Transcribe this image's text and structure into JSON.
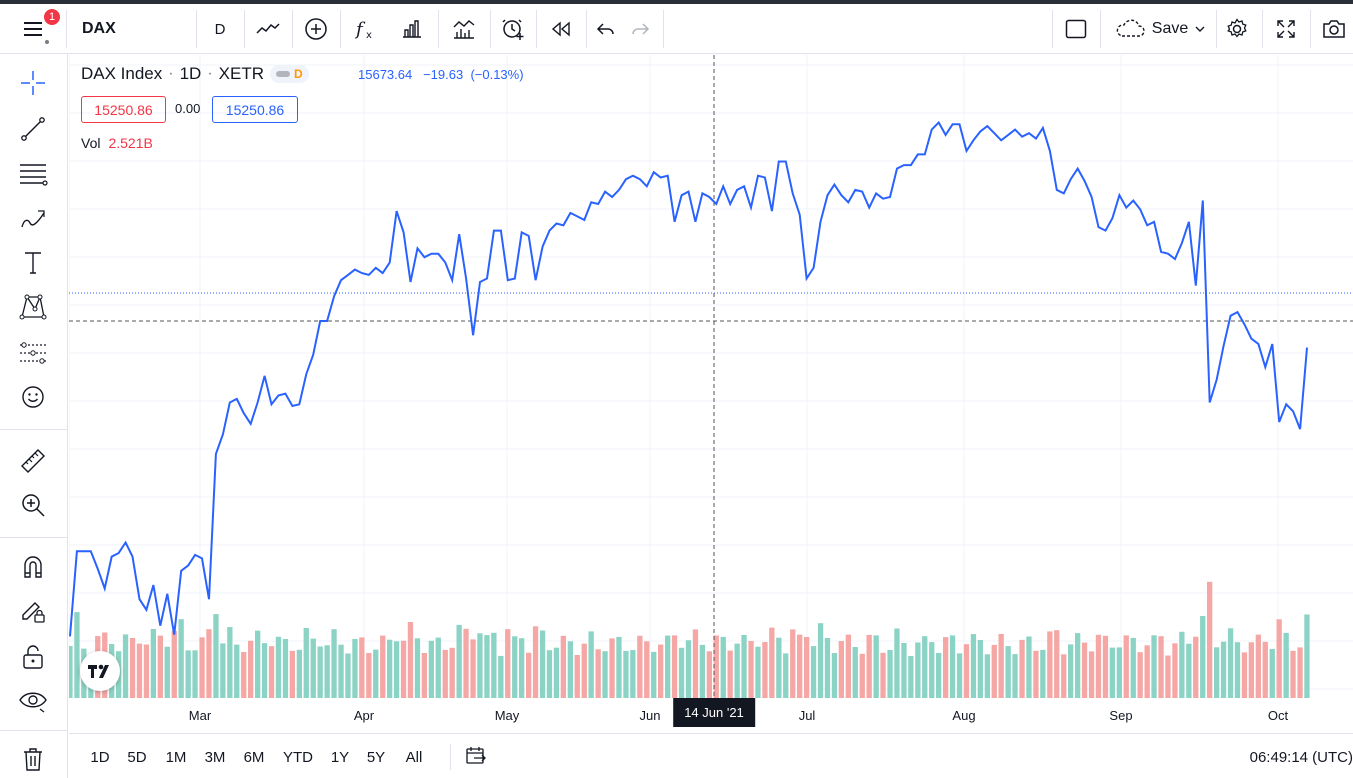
{
  "toolbar": {
    "symbol": "DAX",
    "interval": "D",
    "save_label": "Save",
    "notification_count": "1"
  },
  "legend": {
    "title": "DAX Index",
    "interval": "1D",
    "exchange": "XETR",
    "dtoggle": "D",
    "last_price": "15673.64",
    "change": "−19.63",
    "change_pct": "(−0.13%)",
    "bid": "15250.86",
    "spread": "0.00",
    "ask": "15250.86",
    "vol_label": "Vol",
    "vol_value": "2.521B"
  },
  "xaxis": {
    "months": [
      "Mar",
      "Apr",
      "May",
      "Jun",
      "Jul",
      "Aug",
      "Sep",
      "Oct"
    ],
    "crosshair_label": "14 Jun '21"
  },
  "ranges": [
    "1D",
    "5D",
    "1M",
    "3M",
    "6M",
    "YTD",
    "1Y",
    "5Y",
    "All"
  ],
  "clock": "06:49:14 (UTC)",
  "colors": {
    "line": "#2962ff",
    "vol_up": "#8bd3c4",
    "vol_down": "#f4a7a5",
    "grid": "#f0f3fa"
  },
  "chart_data": {
    "type": "line",
    "series": [
      {
        "values": [
          14040,
          14520,
          14520,
          14520,
          14420,
          14310,
          14490,
          14510,
          14570,
          14490,
          14250,
          14190,
          14330,
          14100,
          14280,
          14050,
          14410,
          14440,
          14500,
          14480,
          14250,
          15070,
          15180,
          15360,
          15380,
          15300,
          15240,
          15360,
          15510,
          15350,
          15400,
          15410,
          15340,
          15350,
          15520,
          15630,
          15820,
          15820,
          15960,
          16050,
          16080,
          16110,
          16090,
          16080,
          16120,
          16090,
          16150,
          16440,
          16320,
          16040,
          16230,
          16180,
          16200,
          16200,
          16150,
          16050,
          16310,
          16060,
          15740,
          16040,
          16060,
          16330,
          16330,
          16050,
          16060,
          16320,
          16300,
          16050,
          16240,
          16330,
          16370,
          16360,
          16430,
          16410,
          16390,
          16490,
          16480,
          16550,
          16520,
          16560,
          16620,
          16640,
          16620,
          16580,
          16660,
          16630,
          16640,
          16380,
          16530,
          16550,
          16380,
          16540,
          16520,
          16480,
          16580,
          16480,
          16560,
          16580,
          16460,
          16640,
          16630,
          16440,
          16720,
          16720,
          16540,
          16420,
          16060,
          16120,
          16380,
          16530,
          16590,
          16530,
          16490,
          16560,
          16550,
          16460,
          16540,
          16510,
          16520,
          16680,
          16700,
          16700,
          16760,
          16760,
          16900,
          16940,
          16870,
          16930,
          16930,
          16780,
          16840,
          16890,
          16920,
          16880,
          16840,
          16870,
          16900,
          16860,
          16880,
          16850,
          16910,
          16780,
          16560,
          16540,
          16620,
          16680,
          16610,
          16520,
          16350,
          16330,
          16400,
          16530,
          16460,
          16500,
          16450,
          16360,
          16380,
          16210,
          16200,
          16170,
          16260,
          16380,
          16020,
          16500,
          15360,
          15490,
          15680,
          15850,
          15870,
          15800,
          15720,
          15690,
          15560,
          15690,
          15250,
          15350,
          15310,
          15210,
          15670
        ],
        "volume_up": [],
        "volume_down": []
      }
    ]
  }
}
